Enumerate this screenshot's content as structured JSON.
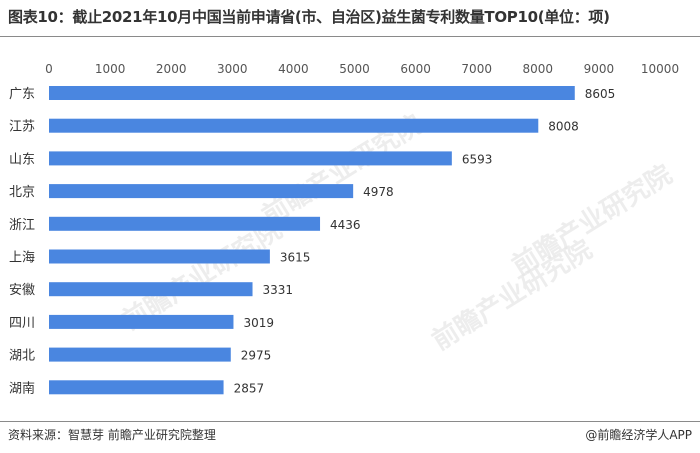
{
  "header": {
    "title": "图表10：截止2021年10月中国当前申请省(市、自治区)益生菌专利数量TOP10(单位：项)"
  },
  "footer": {
    "source": "资料来源：智慧芽 前瞻产业研究院整理",
    "brand": "@前瞻经济学人APP"
  },
  "watermark": {
    "text": "前瞻产业研究院"
  },
  "colors": {
    "bar": "#4a86e0",
    "axis_text": "#555555",
    "label_text": "#333333"
  },
  "chart_data": {
    "type": "bar",
    "orientation": "horizontal",
    "categories": [
      "广东",
      "江苏",
      "山东",
      "北京",
      "浙江",
      "上海",
      "安徽",
      "四川",
      "湖北",
      "湖南"
    ],
    "values": [
      8605,
      8008,
      6593,
      4978,
      4436,
      3615,
      3331,
      3019,
      2975,
      2857
    ],
    "xlim": [
      0,
      10000
    ],
    "xticks": [
      0,
      1000,
      2000,
      3000,
      4000,
      5000,
      6000,
      7000,
      8000,
      9000,
      10000
    ],
    "x_axis_position": "top",
    "grid": false,
    "data_labels": true
  }
}
